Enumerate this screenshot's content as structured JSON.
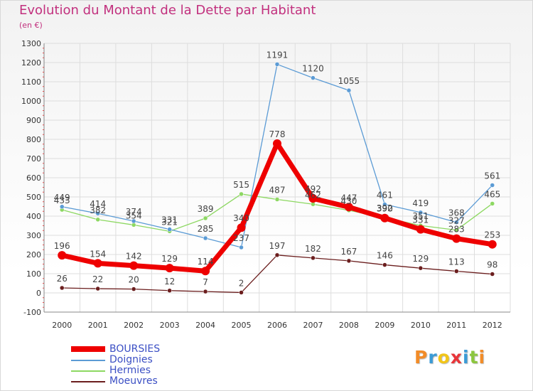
{
  "title": "Evolution du Montant de la Dette par Habitant",
  "subtitle": "(en €)",
  "logo": {
    "text": "Proxiti",
    "letters": [
      "P",
      "r",
      "o",
      "x",
      "i",
      "t",
      "i"
    ],
    "colors": [
      "#f28c28",
      "#3b9bd6",
      "#f2c518",
      "#e8353a",
      "#3b9bd6",
      "#8cc63e",
      "#f28c28"
    ]
  },
  "chart_data": {
    "type": "line",
    "x": [
      "2000",
      "2001",
      "2002",
      "2003",
      "2004",
      "2005",
      "2006",
      "2007",
      "2008",
      "2009",
      "2010",
      "2011",
      "2012"
    ],
    "ylim": [
      -100,
      1300
    ],
    "yticks": [
      -100,
      0,
      100,
      200,
      300,
      400,
      500,
      600,
      700,
      800,
      900,
      1000,
      1100,
      1200,
      1300
    ],
    "grid": true,
    "legend_position": "bottom-left",
    "series": [
      {
        "name": "Moeuvres",
        "color": "#6b1e1e",
        "values": [
          26,
          22,
          20,
          12,
          7,
          2,
          197,
          182,
          167,
          146,
          129,
          113,
          98
        ]
      },
      {
        "name": "Hermies",
        "color": "#8dd862",
        "values": [
          433,
          382,
          354,
          321,
          389,
          515,
          487,
          462,
          430,
          392,
          351,
          327,
          465
        ],
        "labels": [
          "433",
          "382",
          "354",
          "321",
          "389",
          "515",
          "487",
          "462",
          "430",
          "392",
          "351",
          "327",
          "465"
        ]
      },
      {
        "name": "Doignies",
        "color": "#5b9bd5",
        "values": [
          449,
          414,
          374,
          331,
          285,
          237,
          1191,
          1120,
          1055,
          461,
          419,
          368,
          561
        ],
        "labels": [
          "449",
          "414",
          "374",
          "331",
          "285",
          "237",
          "1191",
          "1120",
          "1055",
          "461",
          "419",
          "368",
          "561"
        ]
      },
      {
        "name": "BOURSIES",
        "color": "#ee0000",
        "values": [
          196,
          154,
          142,
          129,
          114,
          340,
          778,
          492,
          447,
          390,
          331,
          283,
          253
        ],
        "labels": [
          "196",
          "154",
          "142",
          "129",
          "114",
          "340",
          "778",
          "492",
          "447",
          "390",
          "331",
          "283",
          "253"
        ]
      }
    ]
  }
}
